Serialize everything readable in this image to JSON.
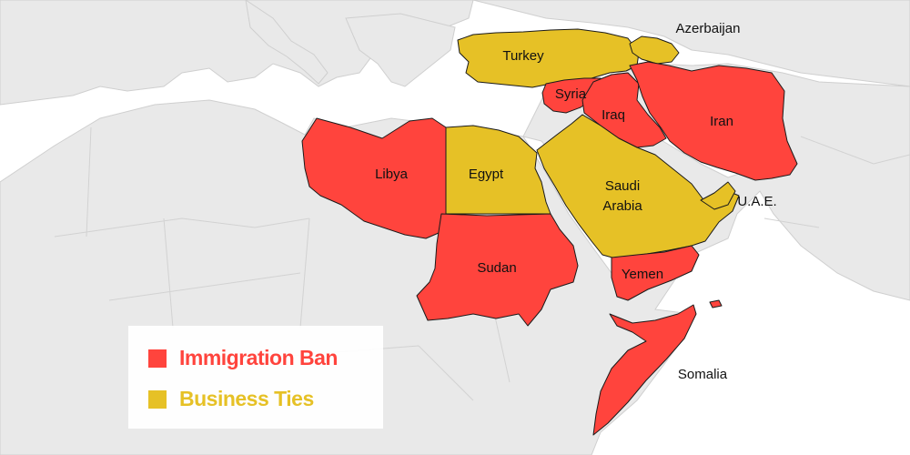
{
  "colors": {
    "immigration_ban": "#ff443d",
    "business_ties": "#e6c126",
    "land": "#e9e9e9",
    "sea": "#ffffff"
  },
  "legend": {
    "items": [
      {
        "key": "immigration_ban",
        "label": "Immigration Ban"
      },
      {
        "key": "business_ties",
        "label": "Business Ties"
      }
    ]
  },
  "countries": [
    {
      "id": "libya",
      "label": "Libya",
      "category": "immigration_ban"
    },
    {
      "id": "sudan",
      "label": "Sudan",
      "category": "immigration_ban"
    },
    {
      "id": "syria",
      "label": "Syria",
      "category": "immigration_ban"
    },
    {
      "id": "iraq",
      "label": "Iraq",
      "category": "immigration_ban"
    },
    {
      "id": "iran",
      "label": "Iran",
      "category": "immigration_ban"
    },
    {
      "id": "yemen",
      "label": "Yemen",
      "category": "immigration_ban"
    },
    {
      "id": "somalia",
      "label": "Somalia",
      "category": "immigration_ban"
    },
    {
      "id": "turkey",
      "label": "Turkey",
      "category": "business_ties"
    },
    {
      "id": "egypt",
      "label": "Egypt",
      "category": "business_ties"
    },
    {
      "id": "saudi-arabia",
      "label": "Saudi Arabia",
      "lines": [
        "Saudi",
        "Arabia"
      ],
      "category": "business_ties"
    },
    {
      "id": "azerbaijan",
      "label": "Azerbaijan",
      "category": "business_ties"
    },
    {
      "id": "uae",
      "label": "U.A.E.",
      "category": "business_ties"
    }
  ]
}
